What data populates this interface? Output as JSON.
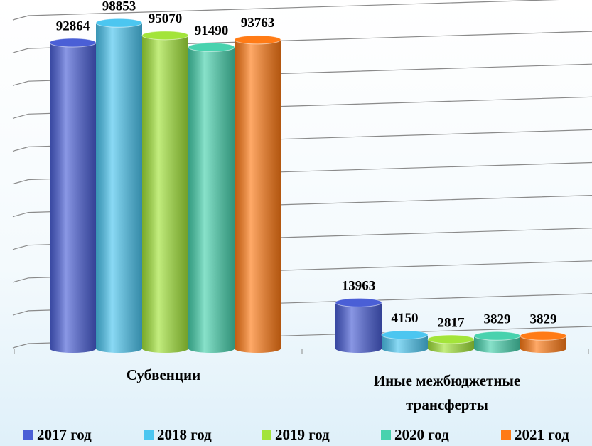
{
  "chart_data": {
    "type": "bar",
    "categories": [
      "Субвенции",
      "Иные межбюджетные трансферты"
    ],
    "series": [
      {
        "name": "2017 год",
        "color": "#4a5fd6",
        "values": [
          92864,
          13963
        ]
      },
      {
        "name": "2018 год",
        "color": "#4cc6f0",
        "values": [
          98853,
          4150
        ]
      },
      {
        "name": "2019 год",
        "color": "#a3e43a",
        "values": [
          95070,
          2817
        ]
      },
      {
        "name": "2020 год",
        "color": "#48d2ae",
        "values": [
          91490,
          3829
        ]
      },
      {
        "name": "2021 год",
        "color": "#ff7b16",
        "values": [
          93763,
          3829
        ]
      }
    ],
    "ylim": [
      0,
      100000
    ],
    "yticks": [
      0,
      10000,
      20000,
      30000,
      40000,
      50000,
      60000,
      70000,
      80000,
      90000,
      100000
    ],
    "grid": true,
    "legend": "bottom"
  }
}
